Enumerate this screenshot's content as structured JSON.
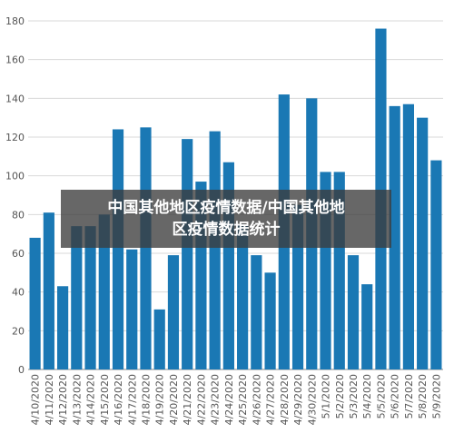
{
  "overlay": {
    "line1": "中国其他地区疫情数据/中国其他地",
    "line2": "区疫情数据统计"
  },
  "colors": {
    "bar": "#1a78b4",
    "grid": "#d9d9d9",
    "axis": "#888888",
    "tick_text": "#555555"
  },
  "chart_data": {
    "type": "bar",
    "title": "",
    "xlabel": "",
    "ylabel": "",
    "ylim": [
      0,
      180
    ],
    "yticks": [
      0,
      20,
      40,
      60,
      80,
      100,
      120,
      140,
      160,
      180
    ],
    "grid": true,
    "categories": [
      "4/10/2020",
      "4/11/2020",
      "4/12/2020",
      "4/13/2020",
      "4/14/2020",
      "4/15/2020",
      "4/16/2020",
      "4/17/2020",
      "4/18/2020",
      "4/19/2020",
      "4/20/2020",
      "4/21/2020",
      "4/22/2020",
      "4/23/2020",
      "4/24/2020",
      "4/25/2020",
      "4/26/2020",
      "4/27/2020",
      "4/28/2020",
      "4/29/2020",
      "4/30/2020",
      "5/1/2020",
      "5/2/2020",
      "5/3/2020",
      "5/4/2020",
      "5/5/2020",
      "5/6/2020",
      "5/7/2020",
      "5/8/2020",
      "5/9/2020"
    ],
    "values": [
      68,
      81,
      43,
      74,
      74,
      80,
      124,
      62,
      125,
      31,
      59,
      119,
      97,
      123,
      107,
      75,
      59,
      50,
      142,
      85,
      140,
      102,
      102,
      59,
      44,
      176,
      136,
      137,
      130,
      108
    ]
  }
}
